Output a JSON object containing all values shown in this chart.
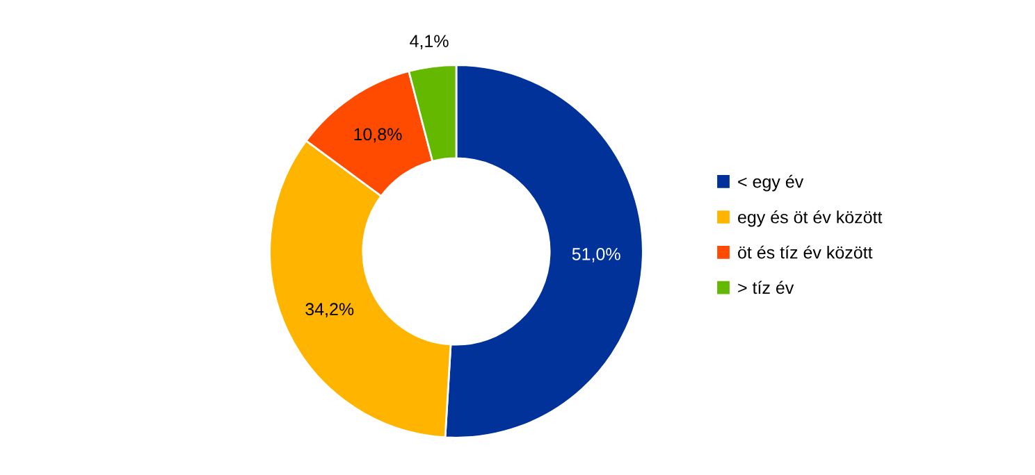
{
  "chart_data": {
    "type": "donut",
    "categories": [
      "< egy év",
      "egy és öt év között",
      "öt és tíz év között",
      "> tíz év"
    ],
    "values": [
      51.0,
      34.2,
      10.8,
      4.1
    ],
    "value_labels": [
      "51,0%",
      "34,2%",
      "10,8%",
      "4,1%"
    ],
    "colors": [
      "#003299",
      "#ffb400",
      "#ff4b00",
      "#65b800"
    ],
    "legend": "right"
  }
}
